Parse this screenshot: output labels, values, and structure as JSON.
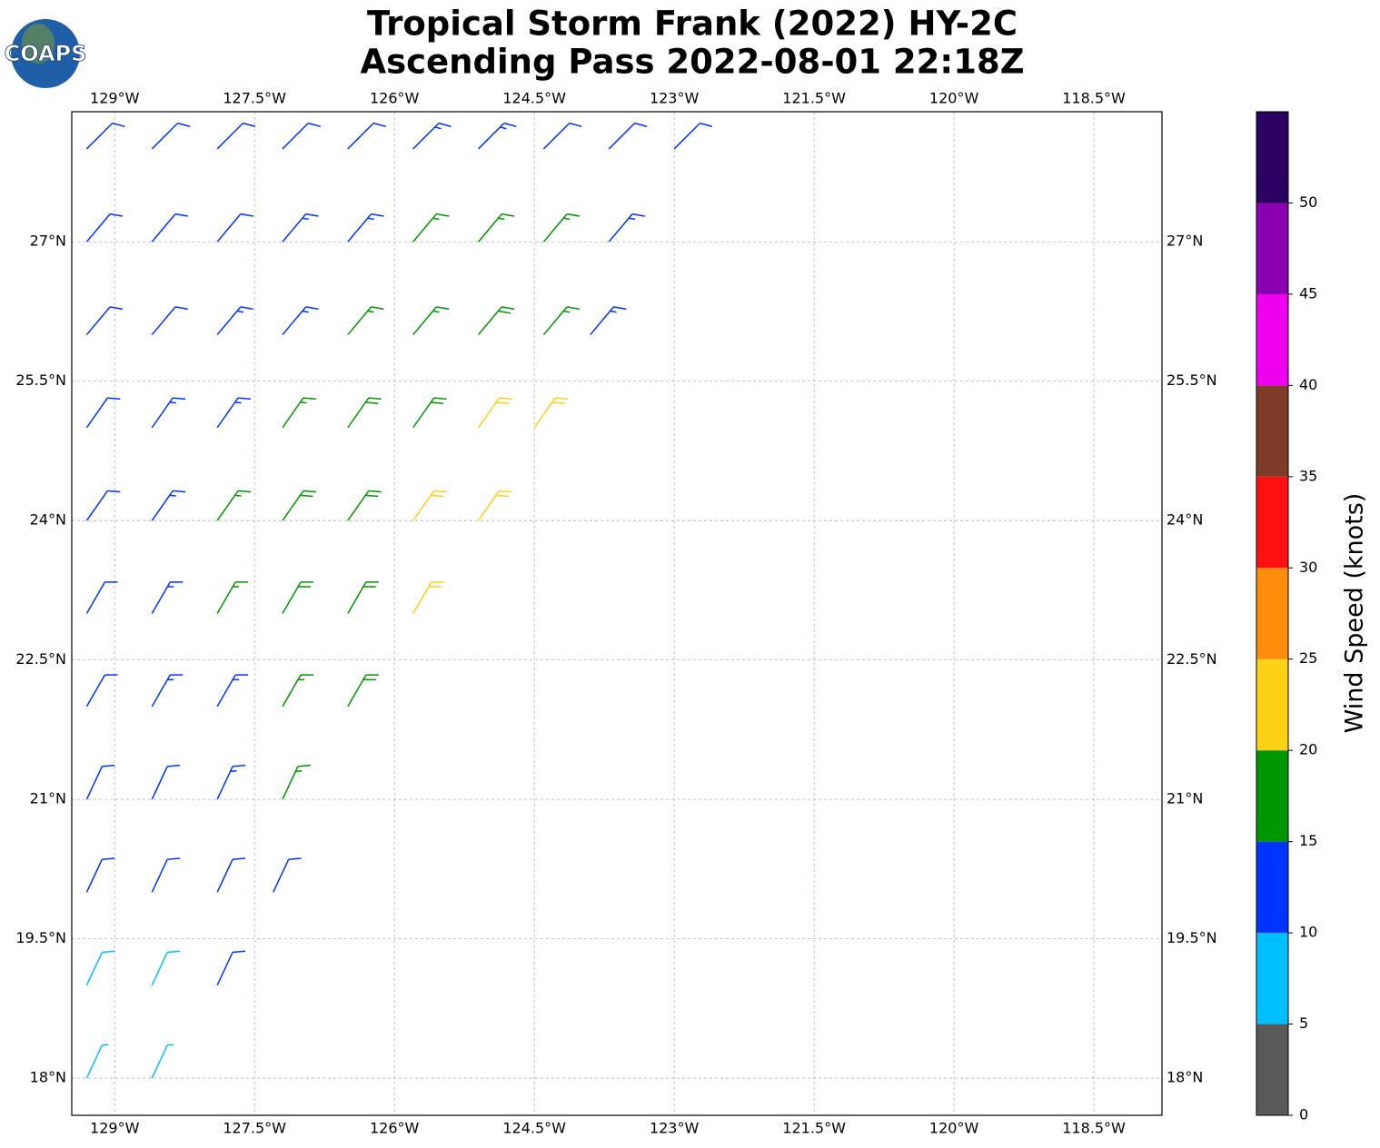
{
  "title": [
    "Tropical Storm Frank (2022) HY-2C",
    "Ascending Pass 2022-08-01 22:18Z"
  ],
  "logo": "COAPS",
  "map": {
    "xlim": [
      -129.46,
      -117.77
    ],
    "ylim": [
      17.6,
      28.4
    ],
    "grid": true,
    "xticks": [
      {
        "value": -129,
        "label": "129°W"
      },
      {
        "value": -127.5,
        "label": "127.5°W"
      },
      {
        "value": -126,
        "label": "126°W"
      },
      {
        "value": -124.5,
        "label": "124.5°W"
      },
      {
        "value": -123,
        "label": "123°W"
      },
      {
        "value": -121.5,
        "label": "121.5°W"
      },
      {
        "value": -120,
        "label": "120°W"
      },
      {
        "value": -118.5,
        "label": "118.5°W"
      }
    ],
    "yticks": [
      {
        "value": 18,
        "label": "18°N"
      },
      {
        "value": 19.5,
        "label": "19.5°N"
      },
      {
        "value": 21,
        "label": "21°N"
      },
      {
        "value": 22.5,
        "label": "22.5°N"
      },
      {
        "value": 24,
        "label": "24°N"
      },
      {
        "value": 25.5,
        "label": "25.5°N"
      },
      {
        "value": 27,
        "label": "27°N"
      }
    ],
    "barbs": {
      "lon": [
        -129.3,
        -128.6,
        -129.3,
        -128.6,
        -127.9,
        -129.3,
        -128.6,
        -127.9,
        -127.3,
        -129.3,
        -128.6,
        -127.9,
        -127.2,
        -129.3,
        -128.6,
        -127.9,
        -127.2,
        -126.5,
        -129.3,
        -128.6,
        -127.9,
        -127.2,
        -126.5,
        -125.8,
        -129.3,
        -128.6,
        -127.9,
        -127.2,
        -126.5,
        -125.8,
        -125.1,
        -129.3,
        -128.6,
        -127.9,
        -127.2,
        -126.5,
        -125.8,
        -125.1,
        -124.5,
        -129.3,
        -128.6,
        -127.9,
        -127.2,
        -126.5,
        -125.8,
        -125.1,
        -124.4,
        -123.9,
        -129.3,
        -128.6,
        -127.9,
        -127.2,
        -126.5,
        -125.8,
        -125.1,
        -124.4,
        -123.7,
        -129.3,
        -128.6,
        -127.9,
        -127.2,
        -126.5,
        -125.8,
        -125.1,
        -124.4,
        -123.7,
        -123.0
      ],
      "lat": [
        18,
        18,
        19,
        19,
        19,
        20,
        20,
        20,
        20,
        21,
        21,
        21,
        21,
        22,
        22,
        22,
        22,
        22,
        23,
        23,
        23,
        23,
        23,
        23,
        24,
        24,
        24,
        24,
        24,
        24,
        24,
        25,
        25,
        25,
        25,
        25,
        25,
        25,
        25,
        26,
        26,
        26,
        26,
        26,
        26,
        26,
        26,
        26,
        27,
        27,
        27,
        27,
        27,
        27,
        27,
        27,
        27,
        28,
        28,
        28,
        28,
        28,
        28,
        28,
        28,
        28,
        28
      ],
      "speed": [
        7,
        7,
        8,
        8,
        10,
        12,
        11,
        12,
        12,
        12,
        12,
        13,
        17,
        12,
        13,
        13,
        17,
        18,
        12,
        13,
        17,
        18,
        19,
        22,
        12,
        13,
        17,
        18,
        19,
        22,
        22,
        12,
        13,
        13,
        17,
        18,
        18,
        22,
        22,
        12,
        12,
        13,
        13,
        17,
        17,
        18,
        17,
        14,
        12,
        12,
        12,
        13,
        13,
        17,
        17,
        17,
        14,
        12,
        12,
        12,
        12,
        12,
        13,
        13,
        12,
        12,
        12
      ],
      "direction": [
        25,
        25,
        25,
        25,
        25,
        25,
        25,
        25,
        25,
        25,
        25,
        25,
        25,
        30,
        30,
        30,
        30,
        30,
        30,
        30,
        30,
        30,
        30,
        30,
        35,
        35,
        35,
        35,
        35,
        35,
        35,
        35,
        35,
        35,
        35,
        35,
        35,
        35,
        35,
        40,
        40,
        40,
        40,
        40,
        40,
        40,
        40,
        40,
        40,
        40,
        40,
        40,
        40,
        40,
        40,
        40,
        40,
        45,
        45,
        45,
        45,
        45,
        45,
        45,
        45,
        45,
        45
      ]
    }
  },
  "colorbar": {
    "label": "Wind Speed (knots)",
    "bounds": [
      0,
      5,
      10,
      15,
      20,
      25,
      30,
      35,
      40,
      45,
      50,
      55
    ],
    "colors": [
      "#595959",
      "#00bfff",
      "#0033ff",
      "#009600",
      "#fcd116",
      "#ff8c0a",
      "#ff1010",
      "#7f3a28",
      "#ee00ee",
      "#8a00b0",
      "#2a0060"
    ],
    "ticks": [
      0,
      5,
      10,
      15,
      20,
      25,
      30,
      35,
      40,
      45,
      50
    ]
  }
}
